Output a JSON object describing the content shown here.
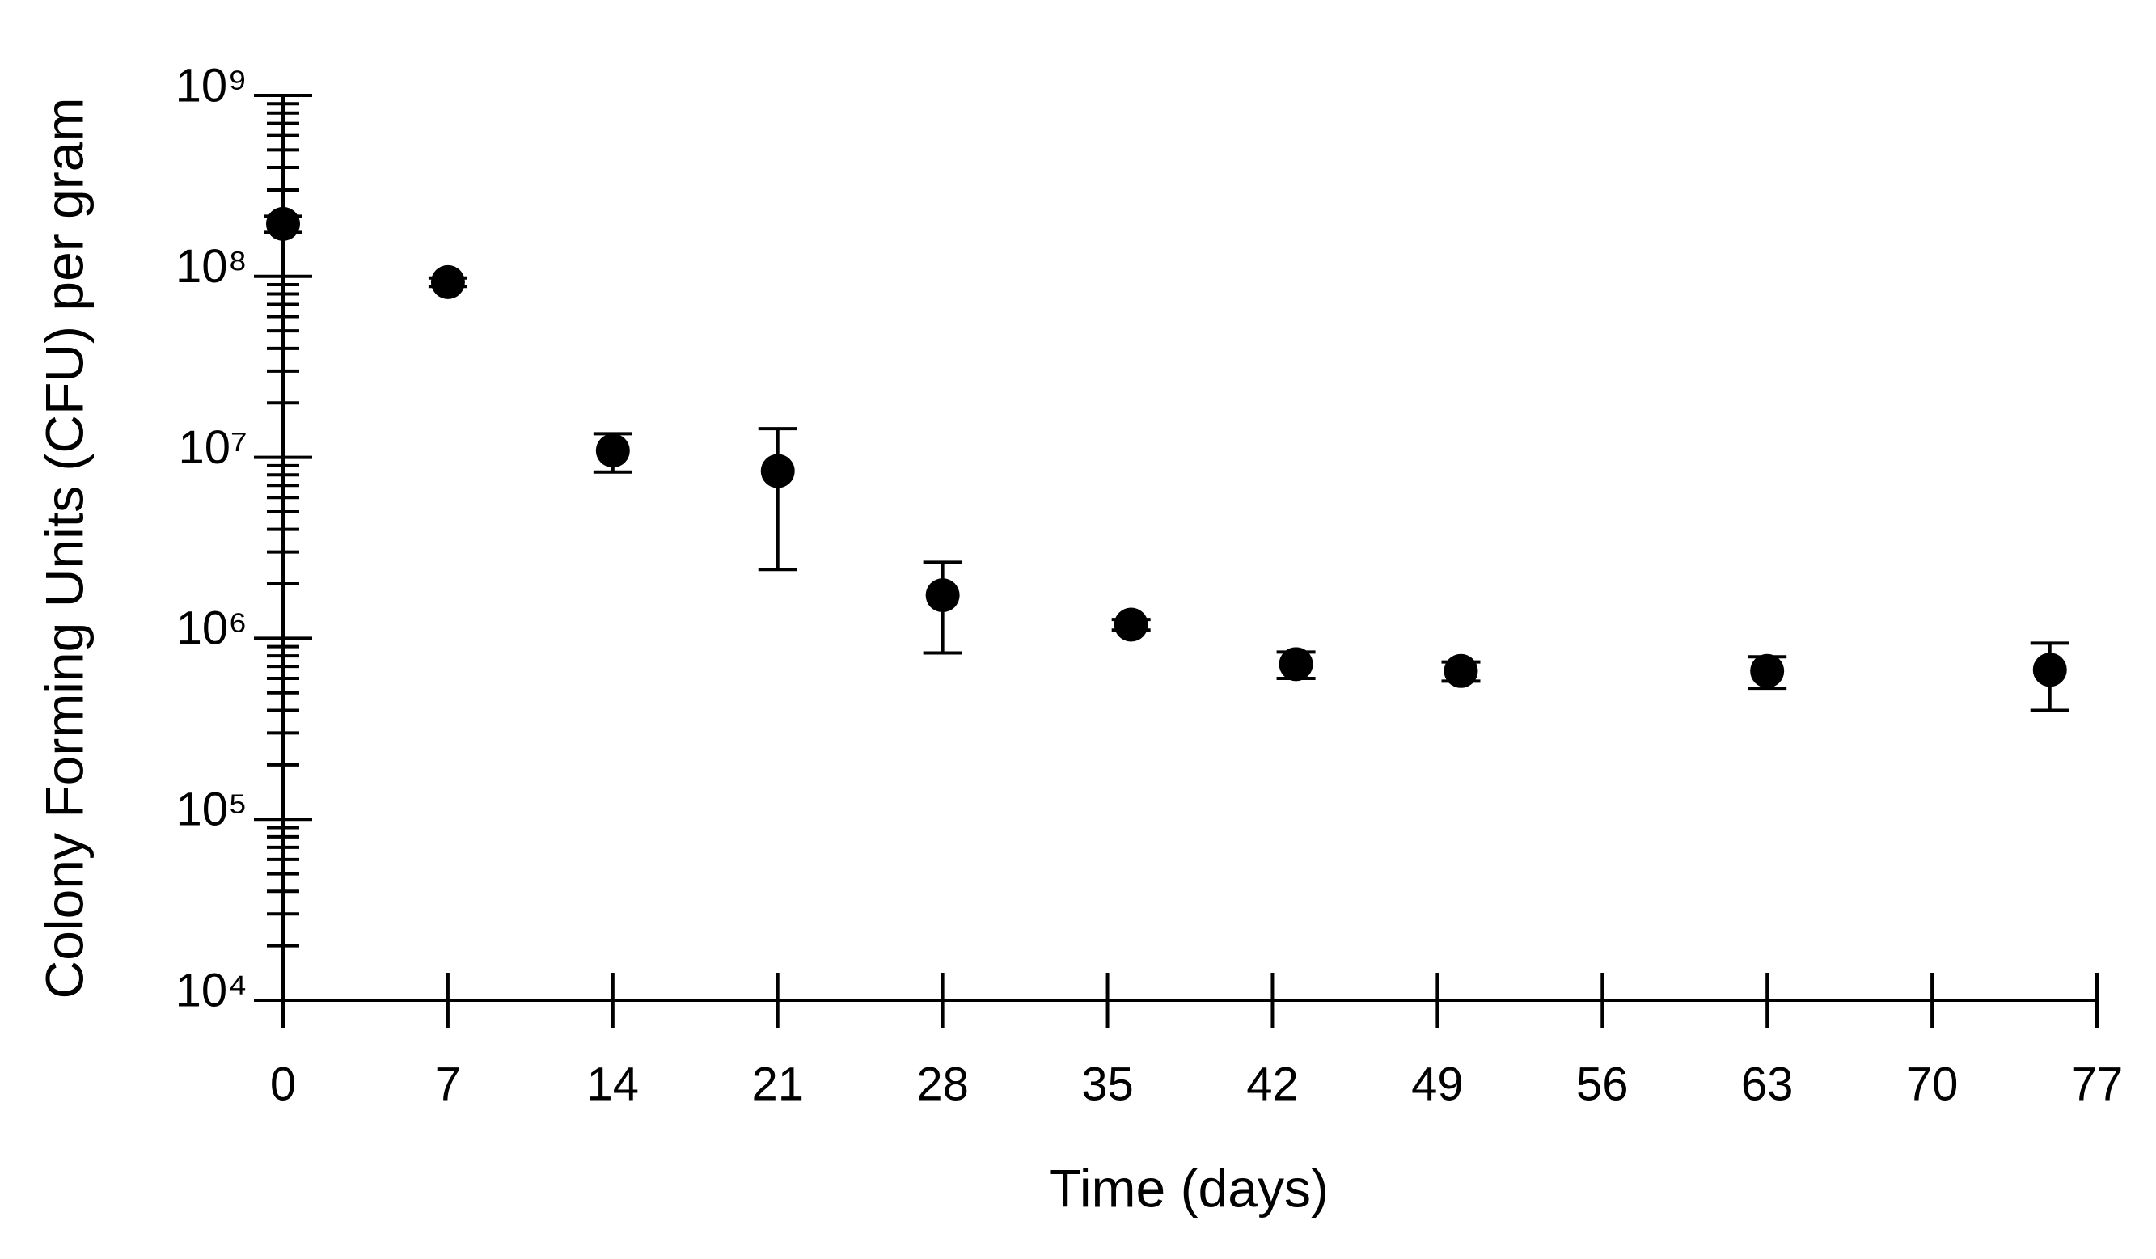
{
  "chart_data": {
    "type": "scatter",
    "xlabel": "Time (days)",
    "ylabel": "Colony Forming Units (CFU) per gram",
    "x": [
      0,
      7,
      14,
      21,
      28,
      36,
      43,
      50,
      63,
      75
    ],
    "series": [
      {
        "color": "#000000",
        "values": [
          195000000,
          93000000,
          10900000,
          8400000,
          1730000,
          1190000,
          720000,
          660000,
          660000,
          670000
        ],
        "errors": [
          20000000,
          5000000,
          2600000,
          6000000,
          900000,
          80000,
          120000,
          80000,
          130000,
          270000
        ]
      }
    ],
    "xlim": [
      0,
      77
    ],
    "xticks": [
      0,
      7,
      14,
      21,
      28,
      35,
      42,
      49,
      56,
      63,
      70,
      77
    ],
    "ylim": [
      10000,
      1000000000
    ],
    "yscale": "log",
    "yticks": [
      {
        "value": 10000,
        "label": "10⁴"
      },
      {
        "value": 100000,
        "label": "10⁵"
      },
      {
        "value": 1000000,
        "label": "10⁶"
      },
      {
        "value": 10000000,
        "label": "10⁷"
      },
      {
        "value": 100000000,
        "label": "10⁸"
      },
      {
        "value": 1000000000,
        "label": "10⁹"
      }
    ],
    "yminorticks": [
      20000.0,
      30000.0,
      40000.0,
      50000.0,
      60000.0,
      70000.0,
      80000.0,
      90000.0,
      200000.0,
      300000.0,
      400000.0,
      500000.0,
      600000.0,
      700000.0,
      800000.0,
      900000.0,
      2000000.0,
      3000000.0,
      4000000.0,
      5000000.0,
      6000000.0,
      7000000.0,
      8000000.0,
      9000000.0,
      20000000.0,
      30000000.0,
      40000000.0,
      50000000.0,
      60000000.0,
      70000000.0,
      80000000.0,
      90000000.0,
      200000000.0,
      300000000.0,
      400000000.0,
      500000000.0,
      600000000.0,
      700000000.0,
      800000000.0,
      900000000.0
    ],
    "grid": false
  }
}
